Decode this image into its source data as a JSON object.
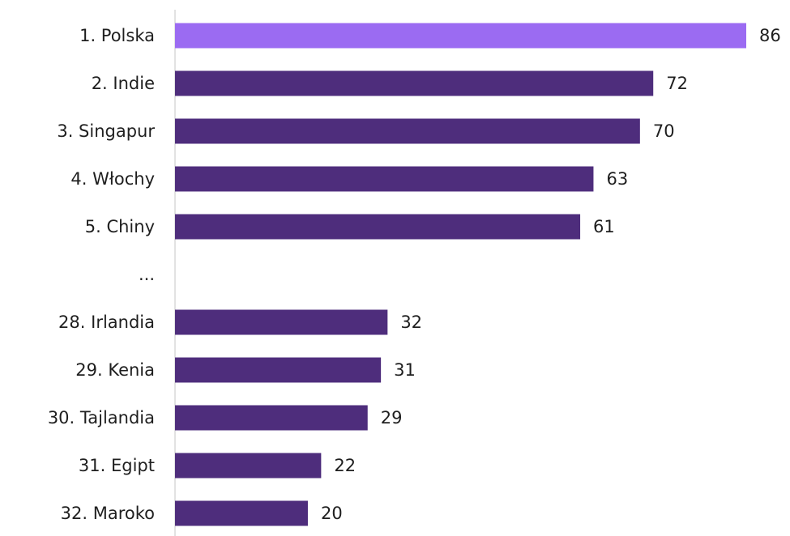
{
  "chart_data": {
    "type": "bar",
    "orientation": "horizontal",
    "categories": [
      "1. Polska",
      "2. Indie",
      "3. Singapur",
      "4. Włochy",
      "5. Chiny",
      "...",
      "28. Irlandia",
      "29. Kenia",
      "30. Tajlandia",
      "31. Egipt",
      "32. Maroko"
    ],
    "values": [
      86,
      72,
      70,
      63,
      61,
      null,
      32,
      31,
      29,
      22,
      20
    ],
    "value_labels": [
      "86",
      "72",
      "70",
      "63",
      "61",
      "",
      "32",
      "31",
      "29",
      "22",
      "20"
    ],
    "xlim": [
      0,
      86
    ],
    "grid": false,
    "legend": "none",
    "colors": {
      "highlight": "#9B6BF2",
      "bar": "#4E2D7C",
      "axis": "#d9d9d9",
      "text": "#1f1f1f"
    },
    "highlight_index": 0
  }
}
